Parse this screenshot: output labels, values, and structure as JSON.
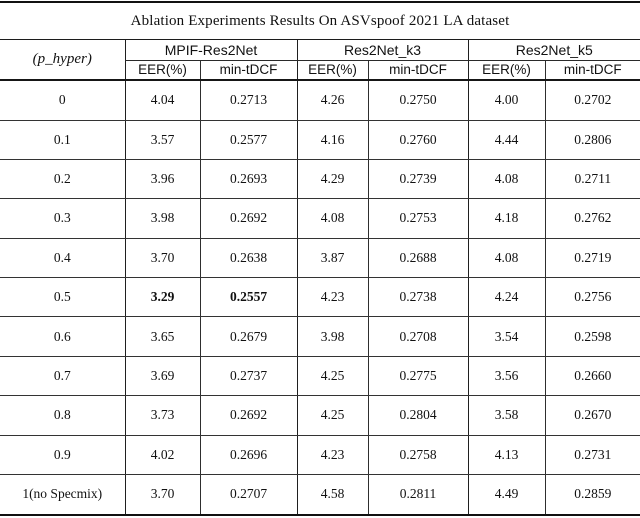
{
  "title": "Ablation Experiments Results On ASVspoof 2021 LA dataset",
  "table": {
    "row_header": "(p_hyper)",
    "groups": [
      {
        "label": "MPIF-Res2Net",
        "subcols": [
          "EER(%)",
          "min-tDCF"
        ]
      },
      {
        "label": "Res2Net_k3",
        "subcols": [
          "EER(%)",
          "min-tDCF"
        ]
      },
      {
        "label": "Res2Net_k5",
        "subcols": [
          "EER(%)",
          "min-tDCF"
        ]
      }
    ],
    "rows": [
      {
        "p_hyper": "0",
        "values": [
          "4.04",
          "0.2713",
          "4.26",
          "0.2750",
          "4.00",
          "0.2702"
        ],
        "bold_value_indexes": []
      },
      {
        "p_hyper": "0.1",
        "values": [
          "3.57",
          "0.2577",
          "4.16",
          "0.2760",
          "4.44",
          "0.2806"
        ],
        "bold_value_indexes": []
      },
      {
        "p_hyper": "0.2",
        "values": [
          "3.96",
          "0.2693",
          "4.29",
          "0.2739",
          "4.08",
          "0.2711"
        ],
        "bold_value_indexes": []
      },
      {
        "p_hyper": "0.3",
        "values": [
          "3.98",
          "0.2692",
          "4.08",
          "0.2753",
          "4.18",
          "0.2762"
        ],
        "bold_value_indexes": []
      },
      {
        "p_hyper": "0.4",
        "values": [
          "3.70",
          "0.2638",
          "3.87",
          "0.2688",
          "4.08",
          "0.2719"
        ],
        "bold_value_indexes": []
      },
      {
        "p_hyper": "0.5",
        "values": [
          "3.29",
          "0.2557",
          "4.23",
          "0.2738",
          "4.24",
          "0.2756"
        ],
        "bold_value_indexes": [
          0,
          1
        ]
      },
      {
        "p_hyper": "0.6",
        "values": [
          "3.65",
          "0.2679",
          "3.98",
          "0.2708",
          "3.54",
          "0.2598"
        ],
        "bold_value_indexes": []
      },
      {
        "p_hyper": "0.7",
        "values": [
          "3.69",
          "0.2737",
          "4.25",
          "0.2775",
          "3.56",
          "0.2660"
        ],
        "bold_value_indexes": []
      },
      {
        "p_hyper": "0.8",
        "values": [
          "3.73",
          "0.2692",
          "4.25",
          "0.2804",
          "3.58",
          "0.2670"
        ],
        "bold_value_indexes": []
      },
      {
        "p_hyper": "0.9",
        "values": [
          "4.02",
          "0.2696",
          "4.23",
          "0.2758",
          "4.13",
          "0.2731"
        ],
        "bold_value_indexes": []
      },
      {
        "p_hyper": "1(no Specmix)",
        "values": [
          "3.70",
          "0.2707",
          "4.58",
          "0.2811",
          "4.49",
          "0.2859"
        ],
        "bold_value_indexes": []
      }
    ]
  },
  "colors": {
    "background": "#ffffff",
    "text": "#111111",
    "rule_heavy": "#111111",
    "rule_light": "#333333"
  }
}
